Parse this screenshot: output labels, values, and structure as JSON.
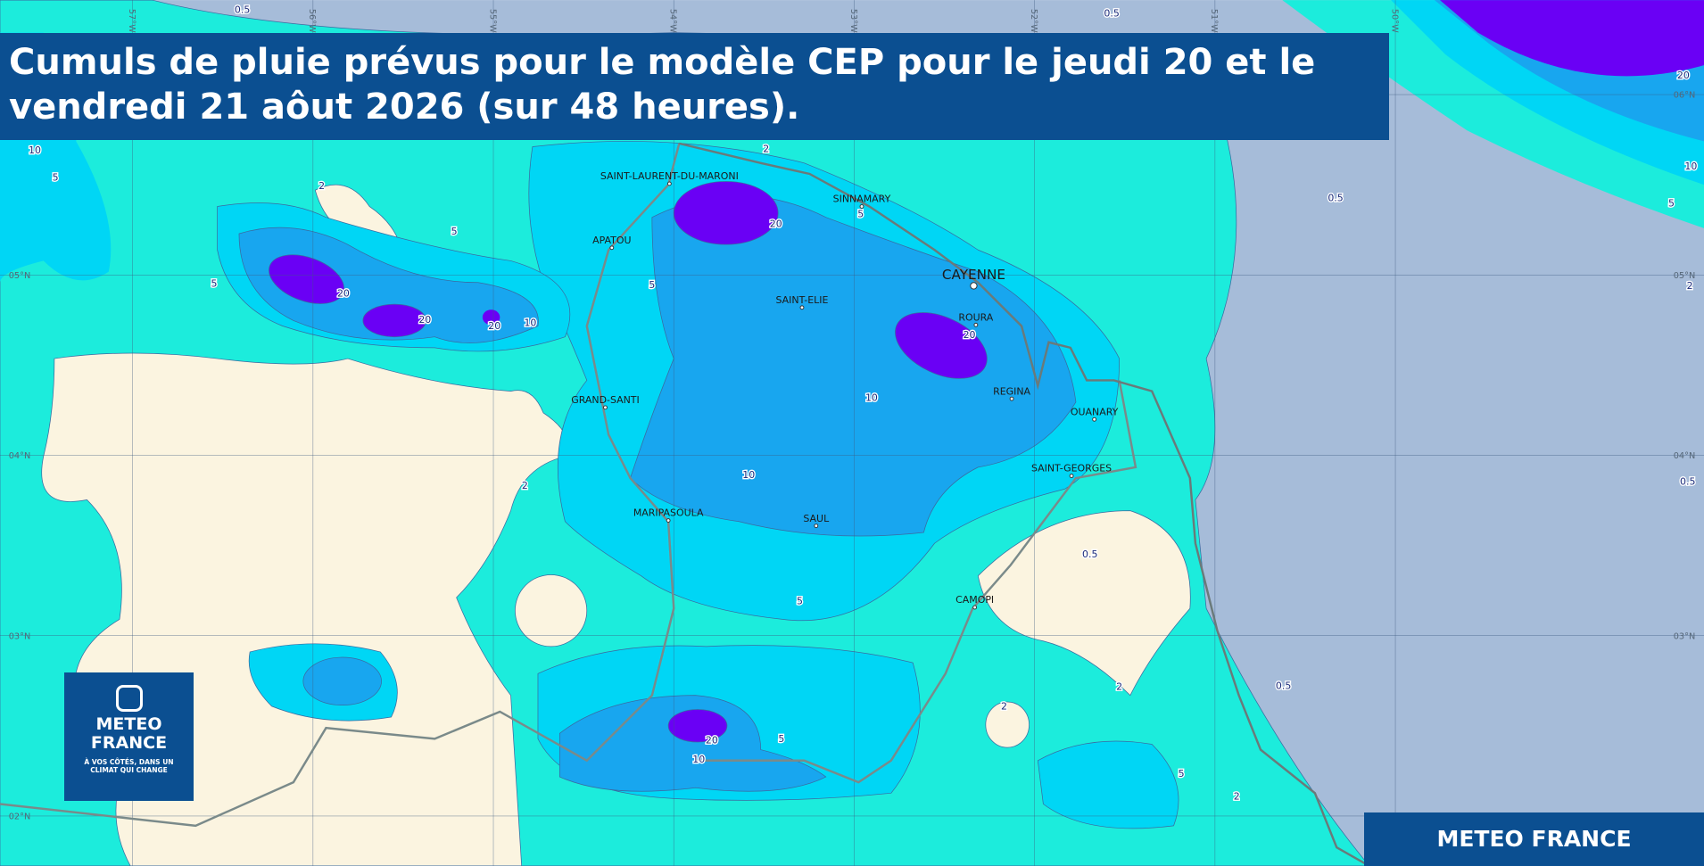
{
  "title": "Cumuls de pluie prévus pour le modèle CEP pour le jeudi 20 et le vendredi 21 aôut 2026 (sur 48 heures).",
  "cities": [
    "SAINT-LAURENT-DU-MARONI",
    "SINNAMARY",
    "APATOU",
    "CAYENNE",
    "SAINT-ELIE",
    "ROURA",
    "GRAND-SANTI",
    "REGINA",
    "OUANARY",
    "SAINT-GEORGES",
    "MARIPASOULA",
    "SAUL",
    "CAMOPI"
  ],
  "latitudes": [
    "06°N",
    "05°N",
    "04°N",
    "03°N",
    "02°N"
  ],
  "longitudes": [
    "57°W",
    "56°W",
    "55°W",
    "54°W",
    "53°W",
    "52°W",
    "51°W",
    "50°W"
  ],
  "contour_labels": [
    "20",
    "20",
    "20",
    "20",
    "20",
    "20",
    "20",
    "10",
    "10",
    "10",
    "10",
    "10",
    "10",
    "5",
    "5",
    "5",
    "5",
    "5",
    "5",
    "5",
    "5",
    "5",
    "2",
    "2",
    "2",
    "2",
    "2",
    "2",
    "2",
    "0.5",
    "0.5",
    "0.5",
    "0.5",
    "0.5",
    "0.5"
  ],
  "logo": {
    "name": [
      "METEO",
      "FRANCE"
    ],
    "tagline": [
      "À VOS CÔTÉS, DANS UN",
      "CLIMAT QUI CHANGE"
    ]
  },
  "footer": "METEO FRANCE"
}
